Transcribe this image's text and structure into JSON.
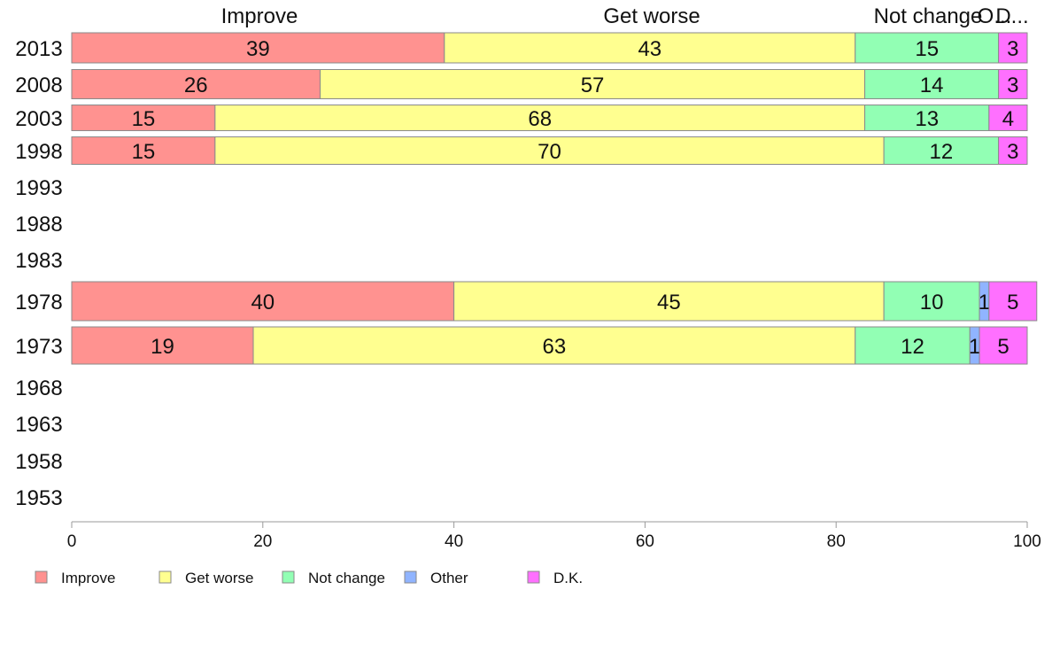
{
  "chart_data": {
    "type": "bar",
    "orientation": "horizontal",
    "stacked": true,
    "categories": [
      "2013",
      "2008",
      "2003",
      "1998",
      "1993",
      "1988",
      "1983",
      "1978",
      "1973",
      "1968",
      "1963",
      "1958",
      "1953"
    ],
    "series": [
      {
        "name": "Improve",
        "color": "#FF9290",
        "values": [
          39,
          26,
          15,
          15,
          null,
          null,
          null,
          40,
          19,
          null,
          null,
          null,
          null
        ]
      },
      {
        "name": "Get worse",
        "color": "#FFFF90",
        "values": [
          43,
          57,
          68,
          70,
          null,
          null,
          null,
          45,
          63,
          null,
          null,
          null,
          null
        ]
      },
      {
        "name": "Not change",
        "color": "#92FFB4",
        "values": [
          15,
          14,
          13,
          12,
          null,
          null,
          null,
          10,
          12,
          null,
          null,
          null,
          null
        ]
      },
      {
        "name": "Other",
        "color": "#90B4FF",
        "values": [
          0,
          0,
          0,
          0,
          null,
          null,
          null,
          1,
          1,
          null,
          null,
          null,
          null
        ]
      },
      {
        "name": "D.K.",
        "color": "#FF70FF",
        "values": [
          3,
          3,
          4,
          3,
          null,
          null,
          null,
          5,
          5,
          null,
          null,
          null,
          null
        ]
      }
    ],
    "top_labels": [
      "Improve",
      "Get worse",
      "Not change",
      "O...",
      "D..."
    ],
    "xlim": [
      0,
      100
    ],
    "xticks": [
      0,
      20,
      40,
      60,
      80,
      100
    ],
    "grid": false,
    "legend_position": "bottom-left"
  }
}
